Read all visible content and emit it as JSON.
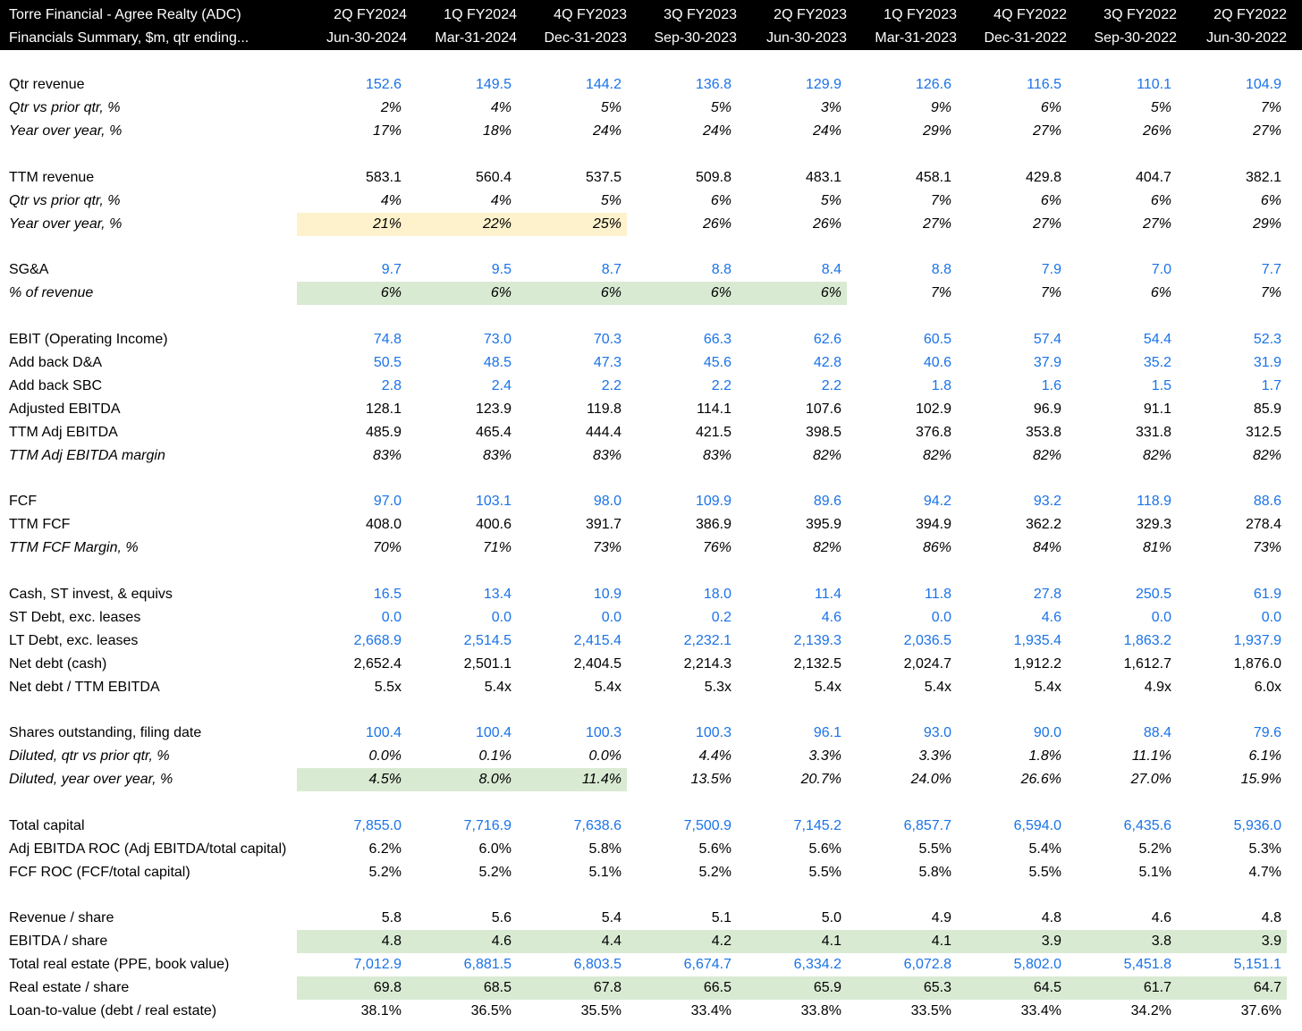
{
  "header": {
    "title": "Torre Financial - Agree Realty (ADC)",
    "subtitle": "Financials Summary, $m, qtr ending...",
    "quarters": [
      "2Q FY2024",
      "1Q FY2024",
      "4Q FY2023",
      "3Q FY2023",
      "2Q FY2023",
      "1Q FY2023",
      "4Q FY2022",
      "3Q FY2022",
      "2Q FY2022"
    ],
    "dates": [
      "Jun-30-2024",
      "Mar-31-2024",
      "Dec-31-2023",
      "Sep-30-2023",
      "Jun-30-2023",
      "Mar-31-2023",
      "Dec-31-2022",
      "Sep-30-2022",
      "Jun-30-2022"
    ]
  },
  "colors": {
    "header_bg": "#000000",
    "input_blue": "#1a73e8",
    "highlight_yellow": "#fdf2cc",
    "highlight_green": "#d9ead3"
  },
  "rows": [
    {
      "label": "Qtr revenue",
      "values": [
        "152.6",
        "149.5",
        "144.2",
        "136.8",
        "129.9",
        "126.6",
        "116.5",
        "110.1",
        "104.9"
      ]
    },
    {
      "label": "Qtr vs prior qtr, %",
      "values": [
        "2%",
        "4%",
        "5%",
        "5%",
        "3%",
        "9%",
        "6%",
        "5%",
        "7%"
      ]
    },
    {
      "label": "Year over year, %",
      "values": [
        "17%",
        "18%",
        "24%",
        "24%",
        "24%",
        "29%",
        "27%",
        "26%",
        "27%"
      ]
    },
    {
      "label": "TTM revenue",
      "values": [
        "583.1",
        "560.4",
        "537.5",
        "509.8",
        "483.1",
        "458.1",
        "429.8",
        "404.7",
        "382.1"
      ]
    },
    {
      "label": "Qtr vs prior qtr, %",
      "values": [
        "4%",
        "4%",
        "5%",
        "6%",
        "5%",
        "7%",
        "6%",
        "6%",
        "6%"
      ]
    },
    {
      "label": "Year over year, %",
      "values": [
        "21%",
        "22%",
        "25%",
        "26%",
        "26%",
        "27%",
        "27%",
        "27%",
        "29%"
      ]
    },
    {
      "label": "SG&A",
      "values": [
        "9.7",
        "9.5",
        "8.7",
        "8.8",
        "8.4",
        "8.8",
        "7.9",
        "7.0",
        "7.7"
      ]
    },
    {
      "label": "% of revenue",
      "values": [
        "6%",
        "6%",
        "6%",
        "6%",
        "6%",
        "7%",
        "7%",
        "6%",
        "7%"
      ]
    },
    {
      "label": "EBIT (Operating Income)",
      "values": [
        "74.8",
        "73.0",
        "70.3",
        "66.3",
        "62.6",
        "60.5",
        "57.4",
        "54.4",
        "52.3"
      ]
    },
    {
      "label": "Add back D&A",
      "values": [
        "50.5",
        "48.5",
        "47.3",
        "45.6",
        "42.8",
        "40.6",
        "37.9",
        "35.2",
        "31.9"
      ]
    },
    {
      "label": "Add back SBC",
      "values": [
        "2.8",
        "2.4",
        "2.2",
        "2.2",
        "2.2",
        "1.8",
        "1.6",
        "1.5",
        "1.7"
      ]
    },
    {
      "label": "Adjusted EBITDA",
      "values": [
        "128.1",
        "123.9",
        "119.8",
        "114.1",
        "107.6",
        "102.9",
        "96.9",
        "91.1",
        "85.9"
      ]
    },
    {
      "label": "TTM Adj EBITDA",
      "values": [
        "485.9",
        "465.4",
        "444.4",
        "421.5",
        "398.5",
        "376.8",
        "353.8",
        "331.8",
        "312.5"
      ]
    },
    {
      "label": "TTM Adj EBITDA margin",
      "values": [
        "83%",
        "83%",
        "83%",
        "83%",
        "82%",
        "82%",
        "82%",
        "82%",
        "82%"
      ]
    },
    {
      "label": "FCF",
      "values": [
        "97.0",
        "103.1",
        "98.0",
        "109.9",
        "89.6",
        "94.2",
        "93.2",
        "118.9",
        "88.6"
      ]
    },
    {
      "label": "TTM FCF",
      "values": [
        "408.0",
        "400.6",
        "391.7",
        "386.9",
        "395.9",
        "394.9",
        "362.2",
        "329.3",
        "278.4"
      ]
    },
    {
      "label": "TTM FCF Margin, %",
      "values": [
        "70%",
        "71%",
        "73%",
        "76%",
        "82%",
        "86%",
        "84%",
        "81%",
        "73%"
      ]
    },
    {
      "label": "Cash, ST invest, & equivs",
      "values": [
        "16.5",
        "13.4",
        "10.9",
        "18.0",
        "11.4",
        "11.8",
        "27.8",
        "250.5",
        "61.9"
      ]
    },
    {
      "label": "ST Debt, exc. leases",
      "values": [
        "0.0",
        "0.0",
        "0.0",
        "0.2",
        "4.6",
        "0.0",
        "4.6",
        "0.0",
        "0.0"
      ]
    },
    {
      "label": "LT Debt, exc. leases",
      "values": [
        "2,668.9",
        "2,514.5",
        "2,415.4",
        "2,232.1",
        "2,139.3",
        "2,036.5",
        "1,935.4",
        "1,863.2",
        "1,937.9"
      ]
    },
    {
      "label": "Net debt (cash)",
      "values": [
        "2,652.4",
        "2,501.1",
        "2,404.5",
        "2,214.3",
        "2,132.5",
        "2,024.7",
        "1,912.2",
        "1,612.7",
        "1,876.0"
      ]
    },
    {
      "label": "Net debt / TTM EBITDA",
      "values": [
        "5.5x",
        "5.4x",
        "5.4x",
        "5.3x",
        "5.4x",
        "5.4x",
        "5.4x",
        "4.9x",
        "6.0x"
      ]
    },
    {
      "label": "Shares outstanding, filing date",
      "values": [
        "100.4",
        "100.4",
        "100.3",
        "100.3",
        "96.1",
        "93.0",
        "90.0",
        "88.4",
        "79.6"
      ]
    },
    {
      "label": "Diluted, qtr vs prior qtr, %",
      "values": [
        "0.0%",
        "0.1%",
        "0.0%",
        "4.4%",
        "3.3%",
        "3.3%",
        "1.8%",
        "11.1%",
        "6.1%"
      ]
    },
    {
      "label": "Diluted, year over year, %",
      "values": [
        "4.5%",
        "8.0%",
        "11.4%",
        "13.5%",
        "20.7%",
        "24.0%",
        "26.6%",
        "27.0%",
        "15.9%"
      ]
    },
    {
      "label": "Total capital",
      "values": [
        "7,855.0",
        "7,716.9",
        "7,638.6",
        "7,500.9",
        "7,145.2",
        "6,857.7",
        "6,594.0",
        "6,435.6",
        "5,936.0"
      ]
    },
    {
      "label": "Adj EBITDA ROC (Adj EBITDA/total capital)",
      "values": [
        "6.2%",
        "6.0%",
        "5.8%",
        "5.6%",
        "5.6%",
        "5.5%",
        "5.4%",
        "5.2%",
        "5.3%"
      ]
    },
    {
      "label": "FCF ROC (FCF/total capital)",
      "values": [
        "5.2%",
        "5.2%",
        "5.1%",
        "5.2%",
        "5.5%",
        "5.8%",
        "5.5%",
        "5.1%",
        "4.7%"
      ]
    },
    {
      "label": "Revenue / share",
      "values": [
        "5.8",
        "5.6",
        "5.4",
        "5.1",
        "5.0",
        "4.9",
        "4.8",
        "4.6",
        "4.8"
      ]
    },
    {
      "label": "EBITDA / share",
      "values": [
        "4.8",
        "4.6",
        "4.4",
        "4.2",
        "4.1",
        "4.1",
        "3.9",
        "3.8",
        "3.9"
      ]
    },
    {
      "label": "Total real estate (PPE, book value)",
      "values": [
        "7,012.9",
        "6,881.5",
        "6,803.5",
        "6,674.7",
        "6,334.2",
        "6,072.8",
        "5,802.0",
        "5,451.8",
        "5,151.1"
      ]
    },
    {
      "label": "Real estate / share",
      "values": [
        "69.8",
        "68.5",
        "67.8",
        "66.5",
        "65.9",
        "65.3",
        "64.5",
        "61.7",
        "64.7"
      ]
    },
    {
      "label": "Loan-to-value (debt / real estate)",
      "values": [
        "38.1%",
        "36.5%",
        "35.5%",
        "33.4%",
        "33.8%",
        "33.5%",
        "33.4%",
        "34.2%",
        "37.6%"
      ]
    }
  ]
}
